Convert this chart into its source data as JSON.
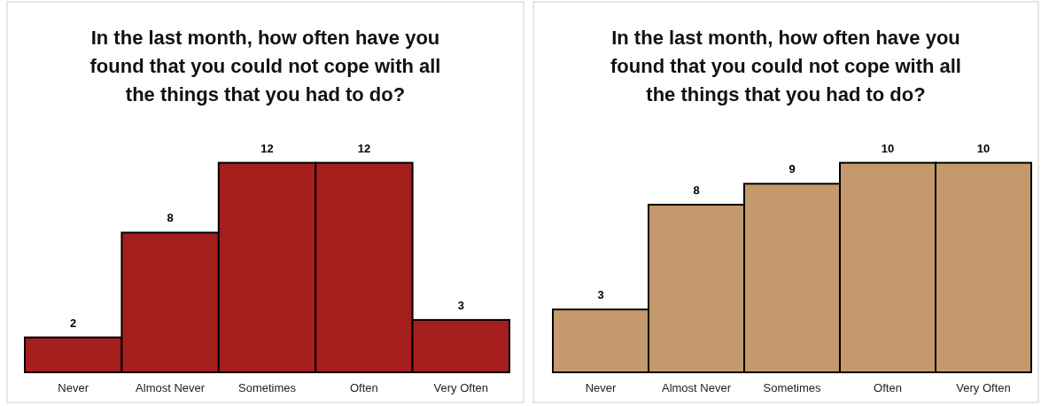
{
  "chart_data": [
    {
      "type": "bar",
      "title": "In the last month, how often have you found that you could not cope with all the things that you had to do?",
      "categories": [
        "Never",
        "Almost Never",
        "Sometimes",
        "Often",
        "Very Often"
      ],
      "values": [
        2,
        8,
        12,
        12,
        3
      ],
      "color": "#a51f1f",
      "data_labels": true
    },
    {
      "type": "bar",
      "title": "In the last month, how often have you found that you could not cope with all the things that you had to do?",
      "categories": [
        "Never",
        "Almost Never",
        "Sometimes",
        "Often",
        "Very Often"
      ],
      "values": [
        3,
        8,
        9,
        10,
        10
      ],
      "color": "#c49a6c",
      "data_labels": true
    }
  ]
}
